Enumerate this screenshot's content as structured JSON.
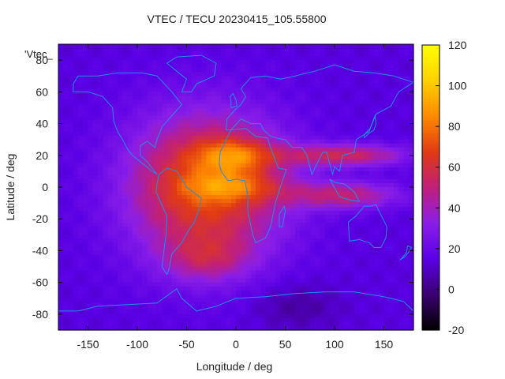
{
  "chart_data": {
    "type": "heatmap",
    "title": "VTEC / TECU 20230415_105.55800",
    "xlabel": "Longitude / deg",
    "ylabel": "Latitude / deg",
    "inset_label": "'Vtec_",
    "xlim": [
      -180,
      180
    ],
    "ylim": [
      -90,
      90
    ],
    "xticks": [
      -150,
      -100,
      -50,
      0,
      50,
      100,
      150
    ],
    "yticks": [
      -80,
      -60,
      -40,
      -20,
      0,
      20,
      40,
      60,
      80
    ],
    "colorbar": {
      "range": [
        -20,
        120
      ],
      "ticks": [
        -20,
        0,
        20,
        40,
        60,
        80,
        100,
        120
      ],
      "palette": [
        "#000000",
        "#3a0070",
        "#5a00e6",
        "#8a1ee8",
        "#c0207a",
        "#e03a14",
        "#ff8a00",
        "#ffd000",
        "#ffff00"
      ]
    },
    "background_vtec": 14,
    "features": [
      {
        "name": "main-daytime-peak",
        "lon": -30,
        "lat": 0,
        "sx": 55,
        "sy": 32,
        "amp": 60
      },
      {
        "name": "north-crest-africa",
        "lon": 0,
        "lat": 20,
        "sx": 28,
        "sy": 8,
        "amp": 32
      },
      {
        "name": "south-crest-africa",
        "lon": 0,
        "lat": 0,
        "sx": 35,
        "sy": 6,
        "amp": 22
      },
      {
        "name": "east-band-north",
        "lon": 110,
        "lat": 20,
        "sx": 45,
        "sy": 5,
        "amp": 40
      },
      {
        "name": "east-band-south",
        "lon": 110,
        "lat": -5,
        "sx": 40,
        "sy": 6,
        "amp": 35
      },
      {
        "name": "southern-extension",
        "lon": -30,
        "lat": -45,
        "sx": 30,
        "sy": 10,
        "amp": 22
      },
      {
        "name": "southern-low-pocket",
        "lon": 60,
        "lat": -75,
        "sx": 30,
        "sy": 10,
        "amp": -10
      }
    ]
  }
}
